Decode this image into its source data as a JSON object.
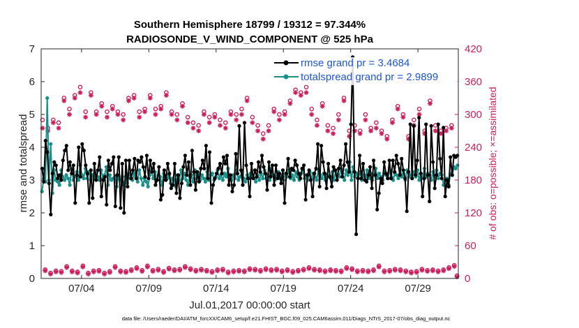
{
  "chart_data": {
    "type": "line",
    "title": "Southern Hemisphere 18799 / 19312 = 97.344%",
    "subtitle": "RADIOSONDE_V_WIND_COMPONENT @ 525 hPa",
    "xlabel": "Jul.01,2017 00:00:00 start",
    "ylabel": "rmse and totalspread",
    "y2label": "# of obs: o=possible; ×=assimilated",
    "footnote": "data file: /Users/raeder/DAI/ATM_forcXX/CAM6_setup/f.e21.FHIST_BGC.f09_025.CAM6assim.011/Diags_NTrS_2017-07/obs_diag_output.nc",
    "xlim": [
      1,
      32
    ],
    "ylim": [
      0,
      7
    ],
    "y2lim": [
      0,
      420
    ],
    "x_ticks": [
      4,
      9,
      14,
      19,
      24,
      29
    ],
    "x_tick_labels": [
      "07/04",
      "07/09",
      "07/14",
      "07/19",
      "07/24",
      "07/29"
    ],
    "y_ticks": [
      "0",
      "1",
      "2",
      "3",
      "4",
      "5",
      "6",
      "7"
    ],
    "y2_ticks": [
      "0",
      "60",
      "120",
      "180",
      "240",
      "300",
      "360",
      "420"
    ],
    "legend_position": "top-right",
    "series": [
      {
        "name": "rmse grand pr = 3.4684",
        "color": "#000000",
        "axis": "left",
        "values": [
          3.35,
          2.95,
          4.2,
          3.85,
          2.9,
          1.95,
          3.2,
          3.55,
          3.45,
          3.05,
          3.15,
          3.0,
          3.6,
          3.9,
          4.05,
          3.3,
          3.55,
          3.2,
          3.45,
          2.3,
          3.15,
          4.0,
          3.1,
          4.1,
          3.9,
          3.45,
          3.2,
          2.3,
          3.3,
          2.45,
          3.5,
          3.0,
          3.3,
          3.7,
          2.5,
          3.0,
          3.1,
          2.25,
          3.6,
          3.3,
          3.5,
          3.7,
          2.2,
          3.15,
          3.7,
          2.15,
          3.5,
          2.0,
          3.6,
          2.8,
          3.6,
          3.05,
          3.3,
          3.65,
          3.05,
          3.6,
          3.55,
          3.7,
          3.4,
          3.1,
          3.75,
          3.05,
          3.6,
          3.25,
          3.5,
          2.85,
          3.0,
          3.4,
          2.4,
          2.55,
          3.3,
          3.0,
          3.5,
          3.2,
          2.75,
          2.85,
          3.5,
          2.6,
          3.15,
          2.45,
          2.9,
          3.4,
          3.75,
          3.15,
          3.55,
          2.85,
          3.9,
          3.25,
          2.7,
          3.25,
          2.95,
          3.35,
          3.6,
          3.35,
          4.05,
          3.05,
          3.85,
          2.3,
          2.85,
          3.05,
          3.2,
          3.35,
          3.5,
          3.2,
          3.7,
          3.5,
          3.75,
          2.85,
          3.15,
          2.65,
          2.85,
          3.8,
          3.2,
          4.65,
          3.3,
          2.85,
          4.75,
          3.45,
          3.05,
          2.5,
          3.5,
          3.05,
          3.3,
          3.1,
          3.55,
          3.25,
          3.75,
          3.4,
          3.2,
          2.7,
          3.55,
          3.1,
          3.45,
          2.85,
          3.45,
          3.05,
          3.2,
          2.9,
          3.3,
          2.3,
          3.2,
          3.65,
          3.1,
          3.35,
          3.3,
          3.6,
          3.45,
          3.2,
          3.05,
          3.35,
          3.45,
          2.4,
          3.15,
          3.3,
          3.0,
          2.5,
          3.2,
          3.35,
          4.1,
          2.8,
          4.05,
          3.55,
          3.2,
          2.75,
          3.5,
          3.1,
          2.8,
          3.4,
          3.3,
          3.0,
          3.35,
          3.6,
          3.1,
          3.45,
          4.1,
          3.55,
          3.25,
          4.7,
          6.75,
          3.25,
          1.35,
          3.05,
          3.75,
          3.05,
          3.5,
          3.0,
          2.95,
          3.15,
          3.4,
          2.75,
          3.6,
          3.15,
          2.1,
          2.6,
          3.05,
          2.9,
          3.55,
          3.2,
          3.05,
          3.6,
          3.05,
          3.6,
          3.25,
          3.75,
          3.5,
          3.15,
          3.65,
          3.3,
          3.05,
          2.05,
          3.25,
          4.7,
          3.05,
          4.65,
          3.15,
          3.6,
          4.9,
          3.2,
          2.5,
          3.05,
          4.7,
          3.15,
          2.35,
          4.65,
          3.55,
          2.75,
          3.15,
          4.7,
          3.65,
          3.05,
          4.6,
          2.5,
          3.0,
          2.8,
          3.7,
          3.15,
          3.75,
          3.7,
          3.75
        ]
      },
      {
        "name": "totalspread grand pr = 2.9899",
        "color": "#1a8f8a",
        "axis": "left",
        "values": [
          2.65,
          3.05,
          2.95,
          5.5,
          3.0,
          4.1,
          2.6,
          3.3,
          3.0,
          2.95,
          2.85,
          3.3,
          3.1,
          3.0,
          3.15,
          3.05,
          2.85,
          3.35,
          3.0,
          3.1,
          3.25,
          3.0,
          3.45,
          3.15,
          3.05,
          3.35,
          3.05,
          3.25,
          3.0,
          3.15,
          3.05,
          3.2,
          3.1,
          3.0,
          3.3,
          3.05,
          3.15,
          3.4,
          2.85,
          3.15,
          3.0,
          3.05,
          3.1,
          2.8,
          3.15,
          3.0,
          3.1,
          2.85,
          3.1,
          2.9,
          3.2,
          3.05,
          3.0,
          3.2,
          3.1,
          2.95,
          3.3,
          3.05,
          2.85,
          3.05,
          2.95,
          2.8,
          3.15,
          3.3,
          3.05,
          3.25,
          3.0,
          3.15,
          3.1,
          2.85,
          3.2,
          3.0,
          3.05,
          3.15,
          2.9,
          3.05,
          3.0,
          2.8,
          3.15,
          3.0,
          3.3,
          3.05,
          3.2,
          3.0,
          2.85,
          3.1,
          3.15,
          2.95,
          3.3,
          3.05,
          3.2,
          3.0,
          3.15,
          3.05,
          2.95,
          3.25,
          3.0,
          3.15,
          3.2,
          3.0,
          3.1,
          3.3,
          3.05,
          3.15,
          3.0,
          3.2,
          3.1,
          3.35,
          3.05,
          3.0,
          3.15,
          3.05,
          3.3,
          3.0,
          3.1,
          3.25,
          3.05,
          2.95,
          3.15,
          3.05,
          3.2,
          3.1,
          3.05,
          2.95,
          3.15,
          3.0,
          3.2,
          3.05,
          3.3,
          3.05,
          3.15,
          3.0,
          3.35,
          3.15,
          3.0,
          3.1,
          3.25,
          3.05,
          3.15,
          3.0,
          3.2,
          3.1,
          3.3,
          3.05,
          3.15,
          3.0,
          3.25,
          3.1,
          3.0,
          3.2,
          3.35,
          3.05,
          3.15,
          3.0,
          3.25,
          3.05,
          3.2,
          3.1,
          3.0,
          3.3,
          3.15,
          3.05,
          3.2,
          3.0,
          3.15,
          3.1,
          3.05,
          3.25,
          3.0,
          3.3,
          3.15,
          3.1,
          3.35,
          3.2,
          3.0,
          3.3,
          3.15,
          3.55,
          3.0,
          3.4,
          3.1,
          3.2,
          3.05,
          3.25,
          3.0,
          3.15,
          3.1,
          3.3,
          3.05,
          3.2,
          3.0,
          3.15,
          3.35,
          3.05,
          3.2,
          3.1,
          3.0,
          3.25,
          3.15,
          3.05,
          3.3,
          3.1,
          3.0,
          3.2,
          3.15,
          3.05,
          3.35,
          3.1,
          3.2,
          3.0,
          3.3,
          3.1,
          3.15,
          3.05,
          3.25,
          3.1,
          3.3,
          3.0,
          3.2,
          3.05,
          3.35,
          3.1,
          3.2,
          3.15,
          3.0,
          3.25,
          3.1,
          3.3,
          3.05,
          3.2,
          3.15,
          2.85,
          3.0,
          3.05,
          2.85,
          3.2,
          3.15,
          3.4,
          3.35,
          3.45
        ]
      },
      {
        "name": "# obs possible",
        "color": "#cc1d5b",
        "axis": "right",
        "marker": "o",
        "values": [
          290,
          16,
          275,
          10,
          290,
          14,
          285,
          13,
          330,
          22,
          310,
          14,
          335,
          12,
          350,
          23,
          305,
          10,
          340,
          14,
          305,
          15,
          320,
          10,
          305,
          13,
          315,
          22,
          305,
          14,
          300,
          13,
          330,
          16,
          335,
          20,
          305,
          15,
          310,
          23,
          335,
          15,
          310,
          17,
          315,
          13,
          340,
          19,
          305,
          16,
          300,
          17,
          320,
          22,
          295,
          18,
          285,
          15,
          280,
          17,
          305,
          15,
          295,
          13,
          300,
          16,
          290,
          17,
          285,
          12,
          305,
          14,
          300,
          15,
          310,
          14,
          330,
          18,
          295,
          17,
          280,
          15,
          265,
          18,
          280,
          16,
          310,
          17,
          300,
          14,
          305,
          16,
          325,
          13,
          345,
          15,
          340,
          17,
          350,
          20,
          310,
          17,
          290,
          16,
          320,
          14,
          280,
          16,
          275,
          15,
          300,
          14,
          330,
          20,
          270,
          18,
          280,
          14,
          270,
          15,
          300,
          14,
          275,
          16,
          285,
          23,
          270,
          14,
          260,
          15,
          290,
          17,
          315,
          16,
          300,
          14,
          260,
          12,
          290,
          13,
          310,
          17,
          270,
          15,
          325,
          16,
          280,
          14,
          270,
          16,
          275,
          20,
          280,
          24,
          5
        ]
      },
      {
        "name": "# obs assimilated",
        "color": "#cc1d5b",
        "axis": "right",
        "marker": "*",
        "values": [
          275,
          14,
          270,
          8,
          285,
          12,
          275,
          11,
          325,
          20,
          300,
          12,
          330,
          10,
          340,
          21,
          295,
          8,
          335,
          12,
          300,
          13,
          315,
          8,
          295,
          11,
          310,
          20,
          300,
          12,
          290,
          11,
          325,
          14,
          330,
          18,
          295,
          13,
          305,
          21,
          330,
          13,
          300,
          15,
          310,
          11,
          335,
          17,
          300,
          14,
          290,
          15,
          315,
          20,
          285,
          16,
          275,
          13,
          270,
          15,
          300,
          13,
          285,
          11,
          295,
          14,
          280,
          15,
          275,
          10,
          300,
          12,
          290,
          13,
          300,
          12,
          325,
          16,
          285,
          15,
          270,
          13,
          255,
          16,
          270,
          14,
          305,
          15,
          290,
          12,
          300,
          14,
          320,
          11,
          340,
          13,
          335,
          15,
          340,
          18,
          300,
          15,
          280,
          14,
          315,
          12,
          270,
          14,
          265,
          13,
          290,
          12,
          325,
          18,
          260,
          16,
          270,
          12,
          265,
          13,
          290,
          12,
          270,
          14,
          275,
          21,
          265,
          12,
          255,
          13,
          285,
          15,
          310,
          14,
          295,
          12,
          255,
          10,
          280,
          11,
          300,
          15,
          265,
          13,
          320,
          14,
          270,
          12,
          265,
          14,
          270,
          18,
          275,
          22,
          3
        ]
      }
    ]
  }
}
